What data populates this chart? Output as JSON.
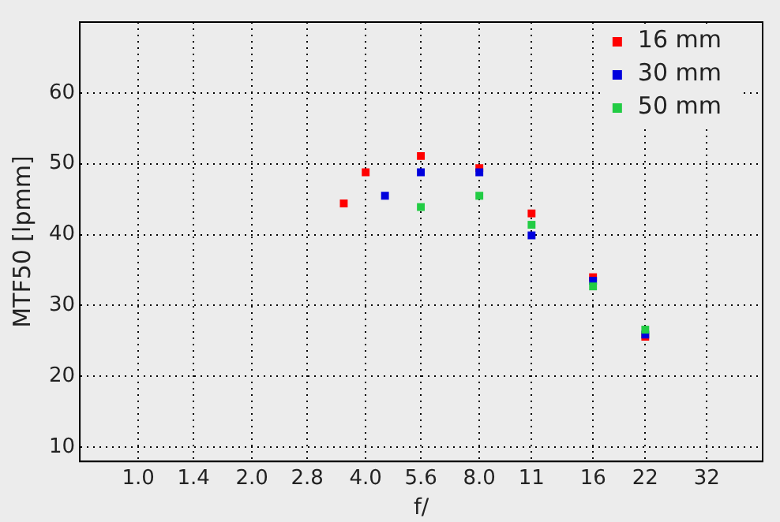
{
  "chart_data": {
    "type": "scatter",
    "xlabel": "f/",
    "ylabel": "MTF50 [lpmm]",
    "log": "x",
    "grid": true,
    "legend": "top right",
    "marker": "square",
    "xlim": [
      0.71,
      45
    ],
    "xticks": [
      {
        "value": 1,
        "label": "1.0"
      },
      1.4,
      {
        "value": 2,
        "label": "2.0"
      },
      2.8,
      {
        "value": 4,
        "label": "4.0"
      },
      5.6,
      {
        "value": 8,
        "label": "8.0"
      },
      11,
      16,
      22,
      32
    ],
    "ylim": [
      8,
      70
    ],
    "yticks": [
      10,
      20,
      30,
      40,
      50,
      60
    ],
    "series": [
      {
        "name": "16 mm",
        "color": "#ff0000",
        "x": [
          3.5,
          4,
          5.6,
          8,
          11,
          16,
          22
        ],
        "values": [
          44.4,
          48.8,
          51.1,
          49.4,
          43.0,
          34.0,
          25.6
        ]
      },
      {
        "name": "30 mm",
        "color": "#0000dd",
        "x": [
          4.5,
          5.6,
          8,
          11,
          16,
          22
        ],
        "values": [
          45.5,
          48.8,
          48.8,
          39.9,
          33.5,
          25.9
        ]
      },
      {
        "name": "50 mm",
        "color": "#22cc44",
        "x": [
          5.6,
          8,
          11,
          16,
          22
        ],
        "values": [
          43.9,
          45.5,
          41.4,
          32.7,
          26.6
        ]
      }
    ]
  }
}
